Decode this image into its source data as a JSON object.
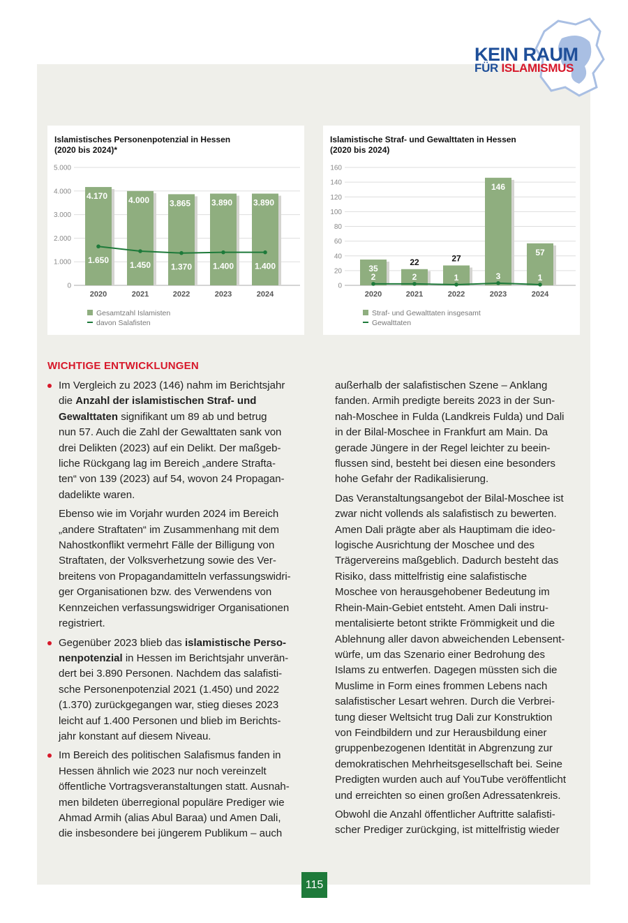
{
  "logo": {
    "line1": "KEIN RAUM",
    "line2a": "FÜR ",
    "line2b": "ISLAMISMUS",
    "colors": {
      "blue": "#1f4f99",
      "red": "#d7182a",
      "map": "#a9bfe3"
    }
  },
  "colors": {
    "bar": "#8fae7f",
    "line": "#1e7a3a",
    "accent": "#d7182a",
    "panel": "#efefea"
  },
  "chart_data": [
    {
      "type": "bar",
      "title_l1": "Islamistisches Personenpotenzial in Hessen",
      "title_l2": "(2020 bis 2024)*",
      "categories": [
        "2020",
        "2021",
        "2022",
        "2023",
        "2024"
      ],
      "yticks": [
        "0",
        "1.000",
        "2.000",
        "3.000",
        "4.000",
        "5.000"
      ],
      "ylim": [
        0,
        5000
      ],
      "grid": true,
      "legend": "bottom-left",
      "series": [
        {
          "name": "Gesamtzahl Islamisten",
          "kind": "bar",
          "values": [
            4170,
            4000,
            3865,
            3890,
            3890
          ],
          "labels": [
            "4.170",
            "4.000",
            "3.865",
            "3.890",
            "3.890"
          ]
        },
        {
          "name": "davon Salafisten",
          "kind": "line",
          "values": [
            1650,
            1450,
            1370,
            1400,
            1400
          ],
          "labels": [
            "1.650",
            "1.450",
            "1.370",
            "1.400",
            "1.400"
          ]
        }
      ]
    },
    {
      "type": "bar",
      "title_l1": "Islamistische Straf- und Gewalttaten in Hessen",
      "title_l2": "(2020 bis 2024)",
      "categories": [
        "2020",
        "2021",
        "2022",
        "2023",
        "2024"
      ],
      "yticks": [
        "0",
        "20",
        "40",
        "60",
        "80",
        "100",
        "120",
        "140",
        "160"
      ],
      "ylim": [
        0,
        160
      ],
      "grid": true,
      "legend": "bottom-left",
      "series": [
        {
          "name": "Straf- und Gewalttaten insgesamt",
          "kind": "bar",
          "values": [
            35,
            22,
            27,
            146,
            57
          ],
          "labels": [
            "35",
            "22",
            "27",
            "146",
            "57"
          ]
        },
        {
          "name": "Gewalttaten",
          "kind": "line",
          "values": [
            2,
            2,
            1,
            3,
            1
          ],
          "labels": [
            "2",
            "2",
            "1",
            "3",
            "1"
          ]
        }
      ]
    }
  ],
  "heading": "WICHTIGE ENTWICKLUNGEN",
  "left": [
    {
      "style": "bul",
      "lines": [
        "Im Vergleich zu 2023 (146) nahm im Berichtsjahr",
        [
          {
            "t": "die "
          },
          {
            "t": "Anzahl der islamistischen Straf- und",
            "b": true
          }
        ],
        [
          {
            "t": "Gewalttaten",
            "b": true
          },
          {
            "t": " signifikant um 89 ab und betrug"
          }
        ],
        "nun 57. Auch die Zahl der Gewalttaten sank von",
        "drei Delikten (2023) auf ein Delikt. Der maßgeb-",
        "liche Rückgang lag im Bereich „andere Strafta-",
        "ten“ von 139 (2023) auf 54, wovon 24 Propagan-",
        "dadelikte waren."
      ]
    },
    {
      "style": "ind",
      "lines": [
        "Ebenso wie im Vorjahr wurden 2024 im Bereich",
        "„andere Straftaten“ im Zusammenhang mit dem",
        "Nahostkonflikt vermehrt Fälle der Billigung von",
        "Straftaten, der Volksverhetzung sowie des Ver-",
        "breitens von Propagandamitteln verfassungswidri-",
        "ger Organisationen bzw. des Verwendens von",
        "Kennzeichen verfassungswidriger Organisationen",
        "registriert."
      ]
    },
    {
      "style": "bul",
      "lines": [
        [
          {
            "t": "Gegenüber 2023 blieb das "
          },
          {
            "t": "islamistische Perso-",
            "b": true
          }
        ],
        [
          {
            "t": "nenpotenzial",
            "b": true
          },
          {
            "t": " in Hessen im Berichtsjahr unverän-"
          }
        ],
        "dert bei 3.890 Personen. Nachdem das salafisti-",
        "sche Personenpotenzial 2021 (1.450) und 2022",
        "(1.370) zurückgegangen war, stieg dieses 2023",
        "leicht auf 1.400 Personen und blieb im Berichts-",
        "jahr konstant auf diesem Niveau."
      ]
    },
    {
      "style": "bul",
      "lines": [
        "Im Bereich des politischen Salafismus fanden in",
        "Hessen ähnlich wie 2023 nur noch vereinzelt",
        "öffentliche Vortragsveranstaltungen statt. Ausnah-",
        "men bildeten überregional populäre Prediger wie",
        "Ahmad Armih (alias Abul Baraa) und Amen Dali,",
        "die insbesondere bei jüngerem Publikum – auch"
      ]
    }
  ],
  "right": [
    {
      "style": "",
      "lines": [
        "außerhalb der salafistischen Szene – Anklang",
        "fanden. Armih predigte bereits 2023 in der Sun-",
        "nah-Moschee in Fulda (Landkreis Fulda) und Dali",
        "in der Bilal-Moschee in Frankfurt am Main. Da",
        "gerade Jüngere in der Regel leichter zu beein-",
        "flussen sind, besteht bei diesen eine besonders",
        "hohe Gefahr der Radikalisierung."
      ]
    },
    {
      "style": "",
      "lines": [
        "Das Veranstaltungsangebot der Bilal-Moschee ist",
        "zwar nicht vollends als salafistisch zu bewerten.",
        "Amen Dali prägte aber als Hauptimam die ideo-",
        "logische Ausrichtung der Moschee und des",
        "Trägervereins maßgeblich. Dadurch besteht das",
        "Risiko, dass mittelfristig eine salafistische",
        "Moschee von herausgehobener Bedeutung im",
        "Rhein-Main-Gebiet entsteht. Amen Dali instru-",
        "mentalisierte betont strikte Frömmigkeit und die",
        "Ablehnung aller davon abweichenden Lebensent-",
        "würfe, um das Szenario einer Bedrohung des",
        "Islams zu entwerfen. Dagegen müssten sich die",
        "Muslime in Form eines frommen Lebens nach",
        "salafistischer Lesart wehren. Durch die Verbrei-",
        "tung dieser Weltsicht trug Dali zur Konstruktion",
        "von Feindbildern und zur Herausbildung einer",
        "gruppenbezogenen Identität in Abgrenzung zur",
        "demokratischen Mehrheitsgesellschaft bei. Seine",
        "Predigten wurden auch auf YouTube veröffentlicht",
        "und erreichten so einen großen Adressatenkreis."
      ]
    },
    {
      "style": "",
      "lines": [
        "Obwohl die Anzahl öffentlicher Auftritte salafisti-",
        "scher Prediger zurückging, ist mittelfristig wieder"
      ]
    }
  ],
  "page_number": "115"
}
